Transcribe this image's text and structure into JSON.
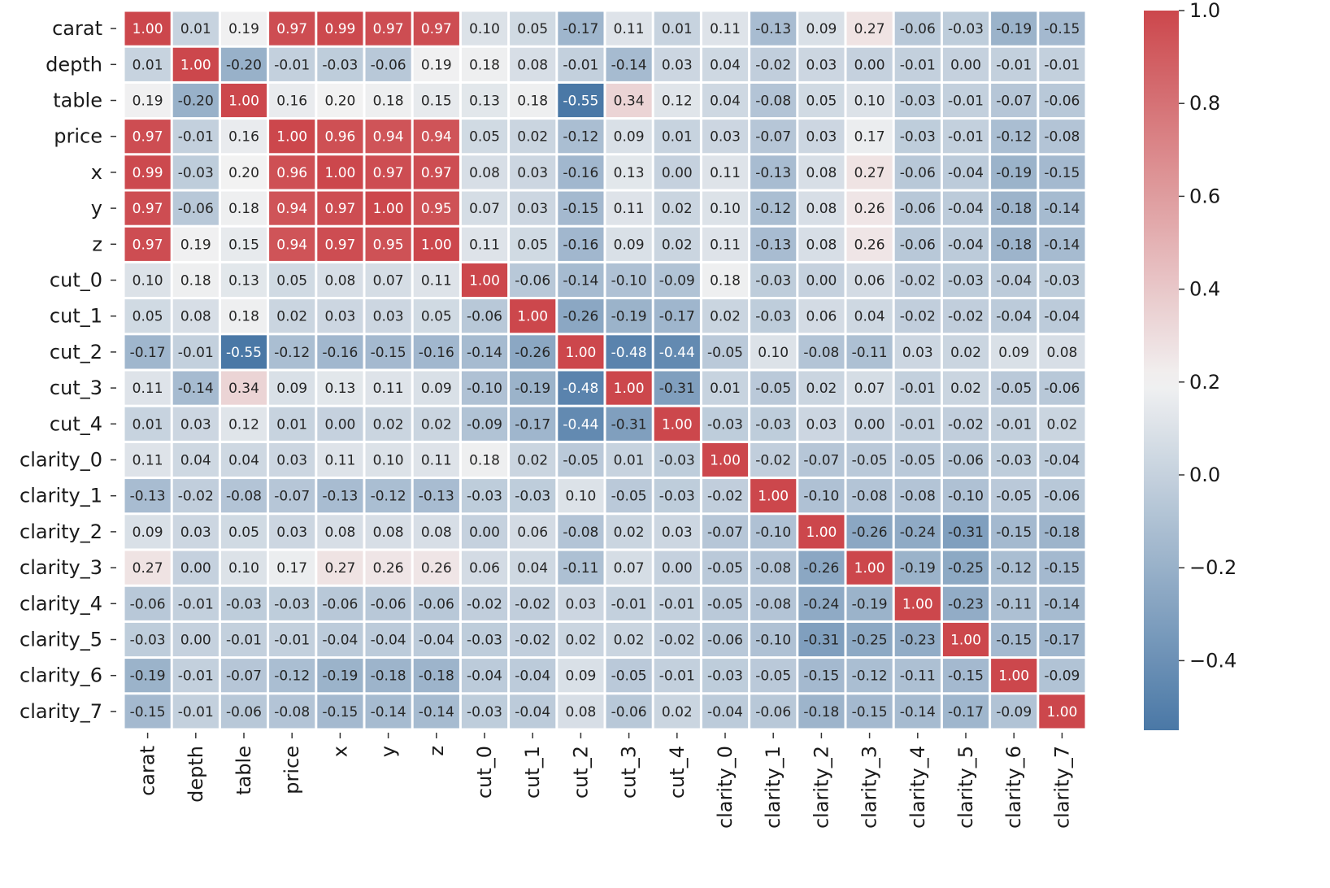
{
  "chart_data": {
    "type": "heatmap",
    "title": "",
    "xlabel": "",
    "ylabel": "",
    "value_format": "0.00",
    "color_scale": {
      "low_color": "#4a78a6",
      "mid_color": "#f2f2f2",
      "high_color": "#cc474c",
      "vmin": -0.55,
      "vcenter": 0.2,
      "vmax": 1.0
    },
    "colorbar": {
      "ticks": [
        1.0,
        0.8,
        0.6,
        0.4,
        0.2,
        0.0,
        -0.2,
        -0.4
      ],
      "tick_labels": [
        "1.0",
        "0.8",
        "0.6",
        "0.4",
        "0.2",
        "0.0",
        "−0.2",
        "−0.4"
      ]
    },
    "rows": [
      "carat",
      "depth",
      "table",
      "price",
      "x",
      "y",
      "z",
      "cut_0",
      "cut_1",
      "cut_2",
      "cut_3",
      "cut_4",
      "clarity_0",
      "clarity_1",
      "clarity_2",
      "clarity_3",
      "clarity_4",
      "clarity_5",
      "clarity_6",
      "clarity_7"
    ],
    "columns": [
      "carat",
      "depth",
      "table",
      "price",
      "x",
      "y",
      "z",
      "cut_0",
      "cut_1",
      "cut_2",
      "cut_3",
      "cut_4",
      "clarity_0",
      "clarity_1",
      "clarity_2",
      "clarity_3",
      "clarity_4",
      "clarity_5",
      "clarity_6",
      "clarity_7"
    ],
    "values": [
      [
        1.0,
        0.01,
        0.19,
        0.97,
        0.99,
        0.97,
        0.97,
        0.1,
        0.05,
        -0.17,
        0.11,
        0.01,
        0.11,
        -0.13,
        0.09,
        0.27,
        -0.06,
        -0.03,
        -0.19,
        -0.15
      ],
      [
        0.01,
        1.0,
        -0.2,
        -0.01,
        -0.03,
        -0.06,
        0.19,
        0.18,
        0.08,
        -0.01,
        -0.14,
        0.03,
        0.04,
        -0.02,
        0.03,
        -0.0,
        -0.01,
        -0.0,
        -0.01,
        -0.01
      ],
      [
        0.19,
        -0.2,
        1.0,
        0.16,
        0.2,
        0.18,
        0.15,
        0.13,
        0.18,
        -0.55,
        0.34,
        0.12,
        0.04,
        -0.08,
        0.05,
        0.1,
        -0.03,
        -0.01,
        -0.07,
        -0.06
      ],
      [
        0.97,
        -0.01,
        0.16,
        1.0,
        0.96,
        0.94,
        0.94,
        0.05,
        0.02,
        -0.12,
        0.09,
        0.01,
        0.03,
        -0.07,
        0.03,
        0.17,
        -0.03,
        -0.01,
        -0.12,
        -0.08
      ],
      [
        0.99,
        -0.03,
        0.2,
        0.96,
        1.0,
        0.97,
        0.97,
        0.08,
        0.03,
        -0.16,
        0.13,
        0.0,
        0.11,
        -0.13,
        0.08,
        0.27,
        -0.06,
        -0.04,
        -0.19,
        -0.15
      ],
      [
        0.97,
        -0.06,
        0.18,
        0.94,
        0.97,
        1.0,
        0.95,
        0.07,
        0.03,
        -0.15,
        0.11,
        0.02,
        0.1,
        -0.12,
        0.08,
        0.26,
        -0.06,
        -0.04,
        -0.18,
        -0.14
      ],
      [
        0.97,
        0.19,
        0.15,
        0.94,
        0.97,
        0.95,
        1.0,
        0.11,
        0.05,
        -0.16,
        0.09,
        0.02,
        0.11,
        -0.13,
        0.08,
        0.26,
        -0.06,
        -0.04,
        -0.18,
        -0.14
      ],
      [
        0.1,
        0.18,
        0.13,
        0.05,
        0.08,
        0.07,
        0.11,
        1.0,
        -0.06,
        -0.14,
        -0.1,
        -0.09,
        0.18,
        -0.03,
        0.0,
        0.06,
        -0.02,
        -0.03,
        -0.04,
        -0.03
      ],
      [
        0.05,
        0.08,
        0.18,
        0.02,
        0.03,
        0.03,
        0.05,
        -0.06,
        1.0,
        -0.26,
        -0.19,
        -0.17,
        0.02,
        -0.03,
        0.06,
        0.04,
        -0.02,
        -0.02,
        -0.04,
        -0.04
      ],
      [
        -0.17,
        -0.01,
        -0.55,
        -0.12,
        -0.16,
        -0.15,
        -0.16,
        -0.14,
        -0.26,
        1.0,
        -0.48,
        -0.44,
        -0.05,
        0.1,
        -0.08,
        -0.11,
        0.03,
        0.02,
        0.09,
        0.08
      ],
      [
        0.11,
        -0.14,
        0.34,
        0.09,
        0.13,
        0.11,
        0.09,
        -0.1,
        -0.19,
        -0.48,
        1.0,
        -0.31,
        0.01,
        -0.05,
        0.02,
        0.07,
        -0.01,
        0.02,
        -0.05,
        -0.06
      ],
      [
        0.01,
        0.03,
        0.12,
        0.01,
        0.0,
        0.02,
        0.02,
        -0.09,
        -0.17,
        -0.44,
        -0.31,
        1.0,
        -0.03,
        -0.03,
        0.03,
        0.0,
        -0.01,
        -0.02,
        -0.01,
        0.02
      ],
      [
        0.11,
        0.04,
        0.04,
        0.03,
        0.11,
        0.1,
        0.11,
        0.18,
        0.02,
        -0.05,
        0.01,
        -0.03,
        1.0,
        -0.02,
        -0.07,
        -0.05,
        -0.05,
        -0.06,
        -0.03,
        -0.04
      ],
      [
        -0.13,
        -0.02,
        -0.08,
        -0.07,
        -0.13,
        -0.12,
        -0.13,
        -0.03,
        -0.03,
        0.1,
        -0.05,
        -0.03,
        -0.02,
        1.0,
        -0.1,
        -0.08,
        -0.08,
        -0.1,
        -0.05,
        -0.06
      ],
      [
        0.09,
        0.03,
        0.05,
        0.03,
        0.08,
        0.08,
        0.08,
        0.0,
        0.06,
        -0.08,
        0.02,
        0.03,
        -0.07,
        -0.1,
        1.0,
        -0.26,
        -0.24,
        -0.31,
        -0.15,
        -0.18
      ],
      [
        0.27,
        -0.0,
        0.1,
        0.17,
        0.27,
        0.26,
        0.26,
        0.06,
        0.04,
        -0.11,
        0.07,
        0.0,
        -0.05,
        -0.08,
        -0.26,
        1.0,
        -0.19,
        -0.25,
        -0.12,
        -0.15
      ],
      [
        -0.06,
        -0.01,
        -0.03,
        -0.03,
        -0.06,
        -0.06,
        -0.06,
        -0.02,
        -0.02,
        0.03,
        -0.01,
        -0.01,
        -0.05,
        -0.08,
        -0.24,
        -0.19,
        1.0,
        -0.23,
        -0.11,
        -0.14
      ],
      [
        -0.03,
        -0.0,
        -0.01,
        -0.01,
        -0.04,
        -0.04,
        -0.04,
        -0.03,
        -0.02,
        0.02,
        0.02,
        -0.02,
        -0.06,
        -0.1,
        -0.31,
        -0.25,
        -0.23,
        1.0,
        -0.15,
        -0.17
      ],
      [
        -0.19,
        -0.01,
        -0.07,
        -0.12,
        -0.19,
        -0.18,
        -0.18,
        -0.04,
        -0.04,
        0.09,
        -0.05,
        -0.01,
        -0.03,
        -0.05,
        -0.15,
        -0.12,
        -0.11,
        -0.15,
        1.0,
        -0.09
      ],
      [
        -0.15,
        -0.01,
        -0.06,
        -0.08,
        -0.15,
        -0.14,
        -0.14,
        -0.03,
        -0.04,
        0.08,
        -0.06,
        0.02,
        -0.04,
        -0.06,
        -0.18,
        -0.15,
        -0.14,
        -0.17,
        -0.09,
        1.0
      ]
    ]
  }
}
